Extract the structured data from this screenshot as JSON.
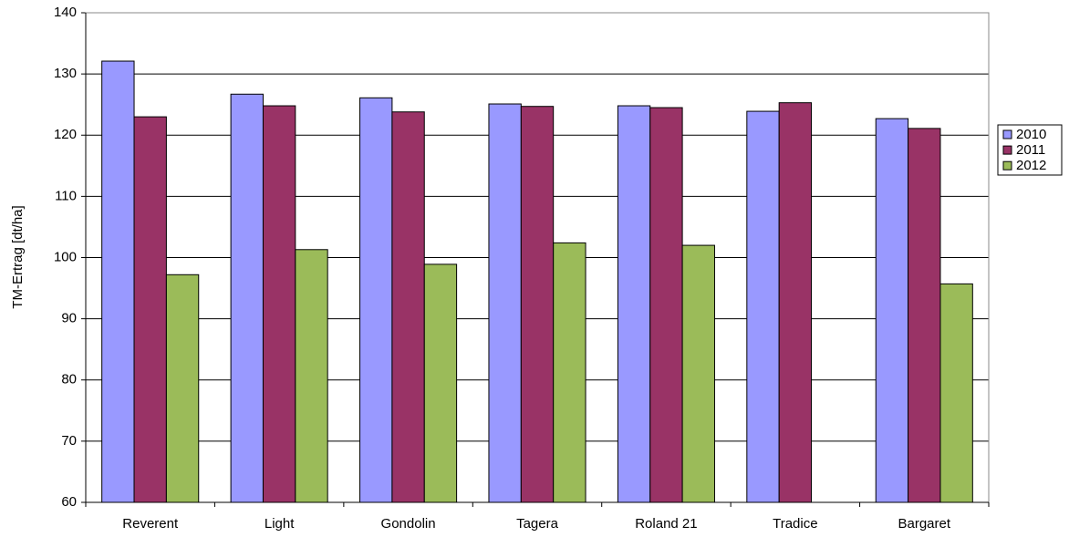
{
  "chart_data": {
    "type": "bar",
    "y_label": "TM-Ertrag [dt/ha]",
    "categories": [
      "Reverent",
      "Light",
      "Gondolin",
      "Tagera",
      "Roland 21",
      "Tradice",
      "Bargaret"
    ],
    "series": [
      {
        "name": "2010",
        "color": "#9999ff",
        "values": [
          132.1,
          126.7,
          126.1,
          125.1,
          124.8,
          123.9,
          122.7
        ]
      },
      {
        "name": "2011",
        "color": "#993366",
        "values": [
          123.0,
          124.8,
          123.8,
          124.7,
          124.5,
          125.3,
          121.1
        ]
      },
      {
        "name": "2012",
        "color": "#9bbb59",
        "values": [
          97.2,
          101.3,
          98.9,
          102.4,
          102.0,
          null,
          95.7
        ]
      }
    ],
    "ylim": [
      60,
      140
    ],
    "yticks": [
      60,
      70,
      80,
      90,
      100,
      110,
      120,
      130,
      140
    ],
    "grid": true,
    "legend": "right"
  }
}
